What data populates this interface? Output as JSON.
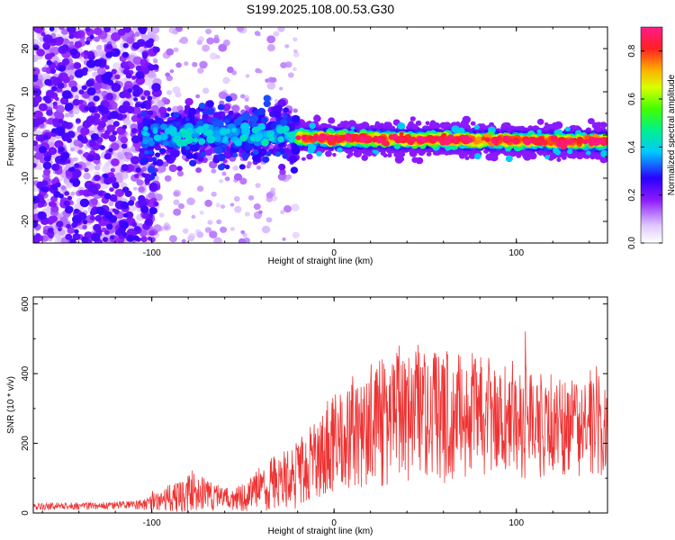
{
  "figure": {
    "title": "S199.2025.108.00.53.G30"
  },
  "chart_data": [
    {
      "type": "heatmap",
      "title": "S199.2025.108.00.53.G30",
      "xlabel": "Height of straight line (km)",
      "ylabel": "Frequency (Hz)",
      "xlim": [
        -165,
        150
      ],
      "ylim": [
        -25,
        25
      ],
      "xticks": [
        -100,
        0,
        100
      ],
      "yticks": [
        -20,
        -10,
        0,
        10,
        20
      ],
      "colorbar": {
        "label": "Normalized spectral amplitude",
        "range": [
          0.0,
          0.9
        ],
        "ticks": [
          0.0,
          0.2,
          0.4,
          0.6,
          0.8
        ]
      },
      "features": [
        {
          "x_range": [
            -165,
            -105
          ],
          "freq_range": [
            -25,
            25
          ],
          "amplitude": 0.15,
          "description_values": "broadband scatter"
        },
        {
          "x_range": [
            -105,
            -20
          ],
          "freq_center": 0,
          "freq_halfwidth": 4,
          "amplitude": 0.25
        },
        {
          "x_range": [
            -20,
            150
          ],
          "freq_center": -1.5,
          "freq_halfwidth": 2,
          "amplitude": 0.85
        }
      ]
    },
    {
      "type": "line",
      "xlabel": "Height of straight line (km)",
      "ylabel": "SNR (10 * v/v)",
      "xlim": [
        -165,
        150
      ],
      "ylim": [
        0,
        620
      ],
      "xticks": [
        -100,
        0,
        100
      ],
      "yticks": [
        0,
        200,
        400,
        600
      ],
      "series": [
        {
          "name": "SNR",
          "color": "#ee3333",
          "envelope_x": [
            -165,
            -150,
            -130,
            -110,
            -100,
            -90,
            -80,
            -70,
            -60,
            -50,
            -40,
            -30,
            -20,
            -10,
            0,
            10,
            20,
            30,
            40,
            50,
            60,
            70,
            80,
            90,
            100,
            110,
            120,
            130,
            140,
            150
          ],
          "envelope_mean": [
            18,
            20,
            20,
            22,
            30,
            45,
            55,
            55,
            40,
            45,
            70,
            95,
            110,
            160,
            200,
            230,
            250,
            265,
            280,
            290,
            280,
            285,
            275,
            270,
            265,
            260,
            255,
            250,
            250,
            250
          ],
          "envelope_spread": [
            12,
            12,
            12,
            14,
            25,
            45,
            60,
            55,
            35,
            45,
            75,
            90,
            110,
            140,
            160,
            180,
            200,
            210,
            210,
            230,
            220,
            210,
            200,
            190,
            190,
            180,
            170,
            160,
            160,
            160
          ]
        }
      ]
    }
  ]
}
